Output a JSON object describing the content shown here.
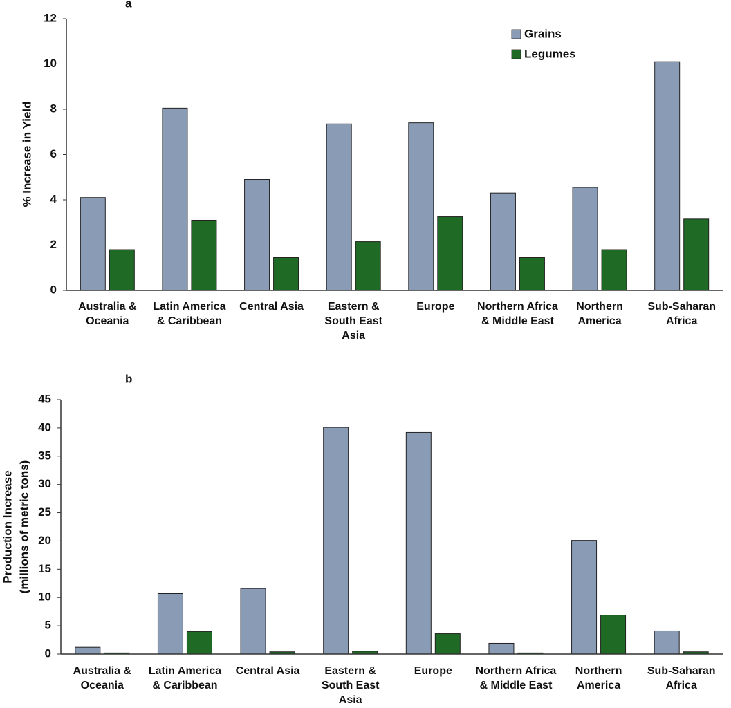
{
  "chart_data": [
    {
      "type": "bar",
      "title": "a",
      "ylabel": [
        "% Increase in Yield"
      ],
      "categories": [
        "Australia & Oceania",
        "Latin America & Caribbean",
        "Central Asia",
        "Eastern & South East Asia",
        "Europe",
        "Northern Africa & Middle East",
        "Northern America",
        "Sub-Saharan Africa"
      ],
      "series": [
        {
          "name": "Grains",
          "color": "#8a9bb5",
          "values": [
            4.1,
            8.05,
            4.9,
            7.35,
            7.4,
            4.3,
            4.55,
            10.1
          ]
        },
        {
          "name": "Legumes",
          "color": "#1f6b25",
          "values": [
            1.8,
            3.1,
            1.45,
            2.15,
            3.25,
            1.45,
            1.8,
            3.15
          ]
        }
      ],
      "ylim": [
        0,
        12
      ],
      "yticks": [
        0,
        2,
        4,
        6,
        8,
        10,
        12
      ],
      "grid": false,
      "legend": "upper right"
    },
    {
      "type": "bar",
      "title": "b",
      "ylabel": [
        "Production Increase",
        "(millions of metric tons)"
      ],
      "categories": [
        "Australia & Oceania",
        "Latin America & Caribbean",
        "Central Asia",
        "Eastern & South East Asia",
        "Europe",
        "Northern Africa & Middle East",
        "Northern America",
        "Sub-Saharan Africa"
      ],
      "series": [
        {
          "color": "#8a9bb5",
          "values": [
            1.2,
            10.7,
            11.6,
            40.1,
            39.2,
            1.9,
            20.1,
            4.1
          ]
        },
        {
          "color": "#1f6b25",
          "values": [
            0.2,
            4.0,
            0.4,
            0.5,
            3.6,
            0.2,
            6.9,
            0.4
          ]
        }
      ],
      "ylim": [
        0,
        45
      ],
      "yticks": [
        0,
        5,
        10,
        15,
        20,
        25,
        30,
        35,
        40,
        45
      ],
      "grid": false
    }
  ]
}
